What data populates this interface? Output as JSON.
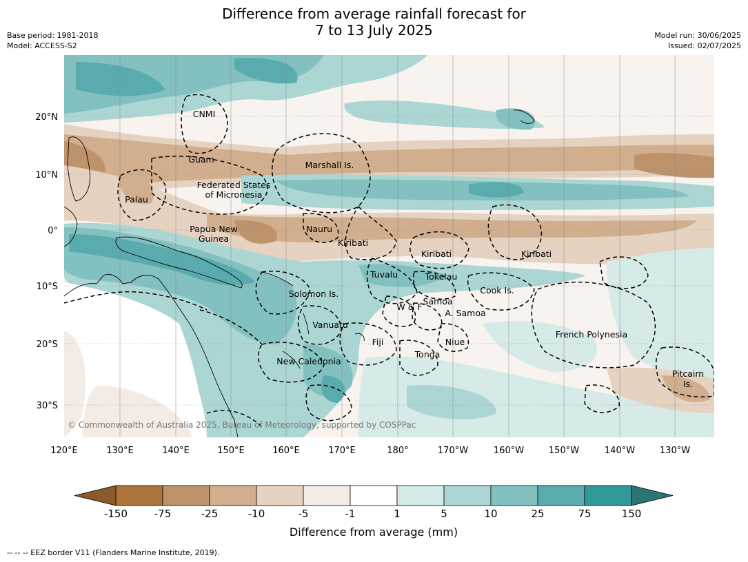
{
  "title": {
    "line1": "Difference from average rainfall forecast for",
    "line2": "7 to 13 July 2025"
  },
  "meta_left": {
    "base_period": "Base period: 1981-2018",
    "model": "Model: ACCESS-S2"
  },
  "meta_right": {
    "model_run": "Model run: 30/06/2025",
    "issued": "Issued: 02/07/2025"
  },
  "map": {
    "lon_labels": [
      "120°E",
      "130°E",
      "140°E",
      "150°E",
      "160°E",
      "170°E",
      "180°",
      "170°W",
      "160°W",
      "150°W",
      "140°W",
      "130°W"
    ],
    "lat_labels": [
      "20°N",
      "10°N",
      "0°",
      "10°S",
      "20°S",
      "30°S"
    ],
    "copyright": "© Commonwealth of Australia 2025, Bureau of Meteorology, supported by COSPPac",
    "regions": [
      {
        "name": "CNMI"
      },
      {
        "name": "Guam"
      },
      {
        "name": "Marshall Is."
      },
      {
        "name": "Federated States"
      },
      {
        "name": "of Micronesia"
      },
      {
        "name": "Palau"
      },
      {
        "name": "Papua New"
      },
      {
        "name": "Guinea"
      },
      {
        "name": "Nauru"
      },
      {
        "name": "Kiribati"
      },
      {
        "name": "Kiribati"
      },
      {
        "name": "Kiribati"
      },
      {
        "name": "Tuvalu"
      },
      {
        "name": "Tokelau"
      },
      {
        "name": "Solomon Is."
      },
      {
        "name": "Cook Is."
      },
      {
        "name": "W & F"
      },
      {
        "name": "Samoa"
      },
      {
        "name": "A. Samoa"
      },
      {
        "name": "Vanuatu"
      },
      {
        "name": "Fiji"
      },
      {
        "name": "Niue"
      },
      {
        "name": "Tonga"
      },
      {
        "name": "French Polynesia"
      },
      {
        "name": "New Caledonia"
      },
      {
        "name": "Pitcairn"
      },
      {
        "name": "Is."
      }
    ]
  },
  "colorbar": {
    "ticks": [
      "-150",
      "-75",
      "-25",
      "-10",
      "-5",
      "-1",
      "1",
      "5",
      "10",
      "25",
      "75",
      "150"
    ],
    "colors": [
      "#ab7438",
      "#be926a",
      "#d1ae8d",
      "#e5d2c1",
      "#f4ebe5",
      "#ffffff",
      "#d6ebe8",
      "#acd6d4",
      "#83c0c0",
      "#59abad",
      "#339898"
    ],
    "under_color": "#8a5a2a",
    "over_color": "#2a7575",
    "label": "Difference from average (mm)"
  },
  "footer": "--  --  -- EEZ border V11 (Flanders Marine Institute, 2019)."
}
